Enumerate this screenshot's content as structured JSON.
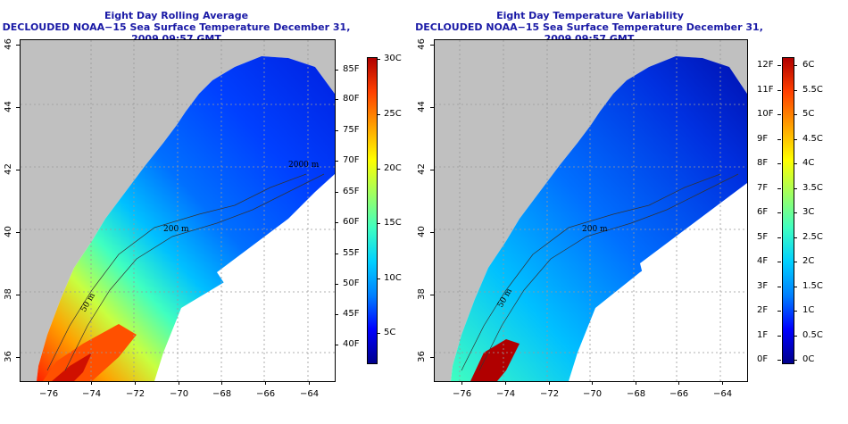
{
  "left_panel": {
    "title": "Eight Day Rolling Average",
    "subtitle": "DECLOUDED NOAA−15 Sea Surface Temperature December 31, 2009 09:57 GMT",
    "colorbar": {
      "type": "sst",
      "colors": [
        "#00008b",
        "#0000ff",
        "#0080ff",
        "#00d0ff",
        "#40ffc0",
        "#a0ff60",
        "#ffff00",
        "#ffa000",
        "#ff4000",
        "#b00000"
      ],
      "fahrenheit": [
        "40F",
        "45F",
        "50F",
        "55F",
        "60F",
        "65F",
        "70F",
        "75F",
        "80F",
        "85F"
      ],
      "celsius": [
        "5C",
        "10C",
        "15C",
        "20C",
        "25C",
        "30C"
      ]
    },
    "contour_labels": [
      "200 m",
      "2000 m",
      "200 m",
      "200 m",
      "50 m",
      "50 m"
    ]
  },
  "right_panel": {
    "title": "Eight Day Temperature Variability",
    "subtitle": "DECLOUDED NOAA−15 Sea Surface Temperature December 31, 2009 09:57 GMT",
    "colorbar": {
      "type": "variability",
      "colors": [
        "#00008b",
        "#0000ff",
        "#0080ff",
        "#00d0ff",
        "#40ffc0",
        "#a0ff60",
        "#ffff00",
        "#ffa000",
        "#ff4000",
        "#b00000"
      ],
      "fahrenheit": [
        "0F",
        "1F",
        "2F",
        "3F",
        "4F",
        "5F",
        "6F",
        "7F",
        "8F",
        "9F",
        "10F",
        "11F",
        "12F"
      ],
      "celsius": [
        "0C",
        "0.5C",
        "1C",
        "1.5C",
        "2C",
        "2.5C",
        "3C",
        "3.5C",
        "4C",
        "4.5C",
        "5C",
        "5.5C",
        "6C"
      ]
    },
    "contour_labels": [
      "200 m",
      "50 m"
    ]
  },
  "axes": {
    "x_ticks": [
      "−76",
      "−74",
      "−72",
      "−70",
      "−68",
      "−66",
      "−64"
    ],
    "y_ticks": [
      "36",
      "38",
      "40",
      "42",
      "44",
      "46"
    ]
  },
  "colors": {
    "land": "#c0c0c0",
    "title": "#1a1aa6",
    "grid": "#bbbbbb"
  }
}
